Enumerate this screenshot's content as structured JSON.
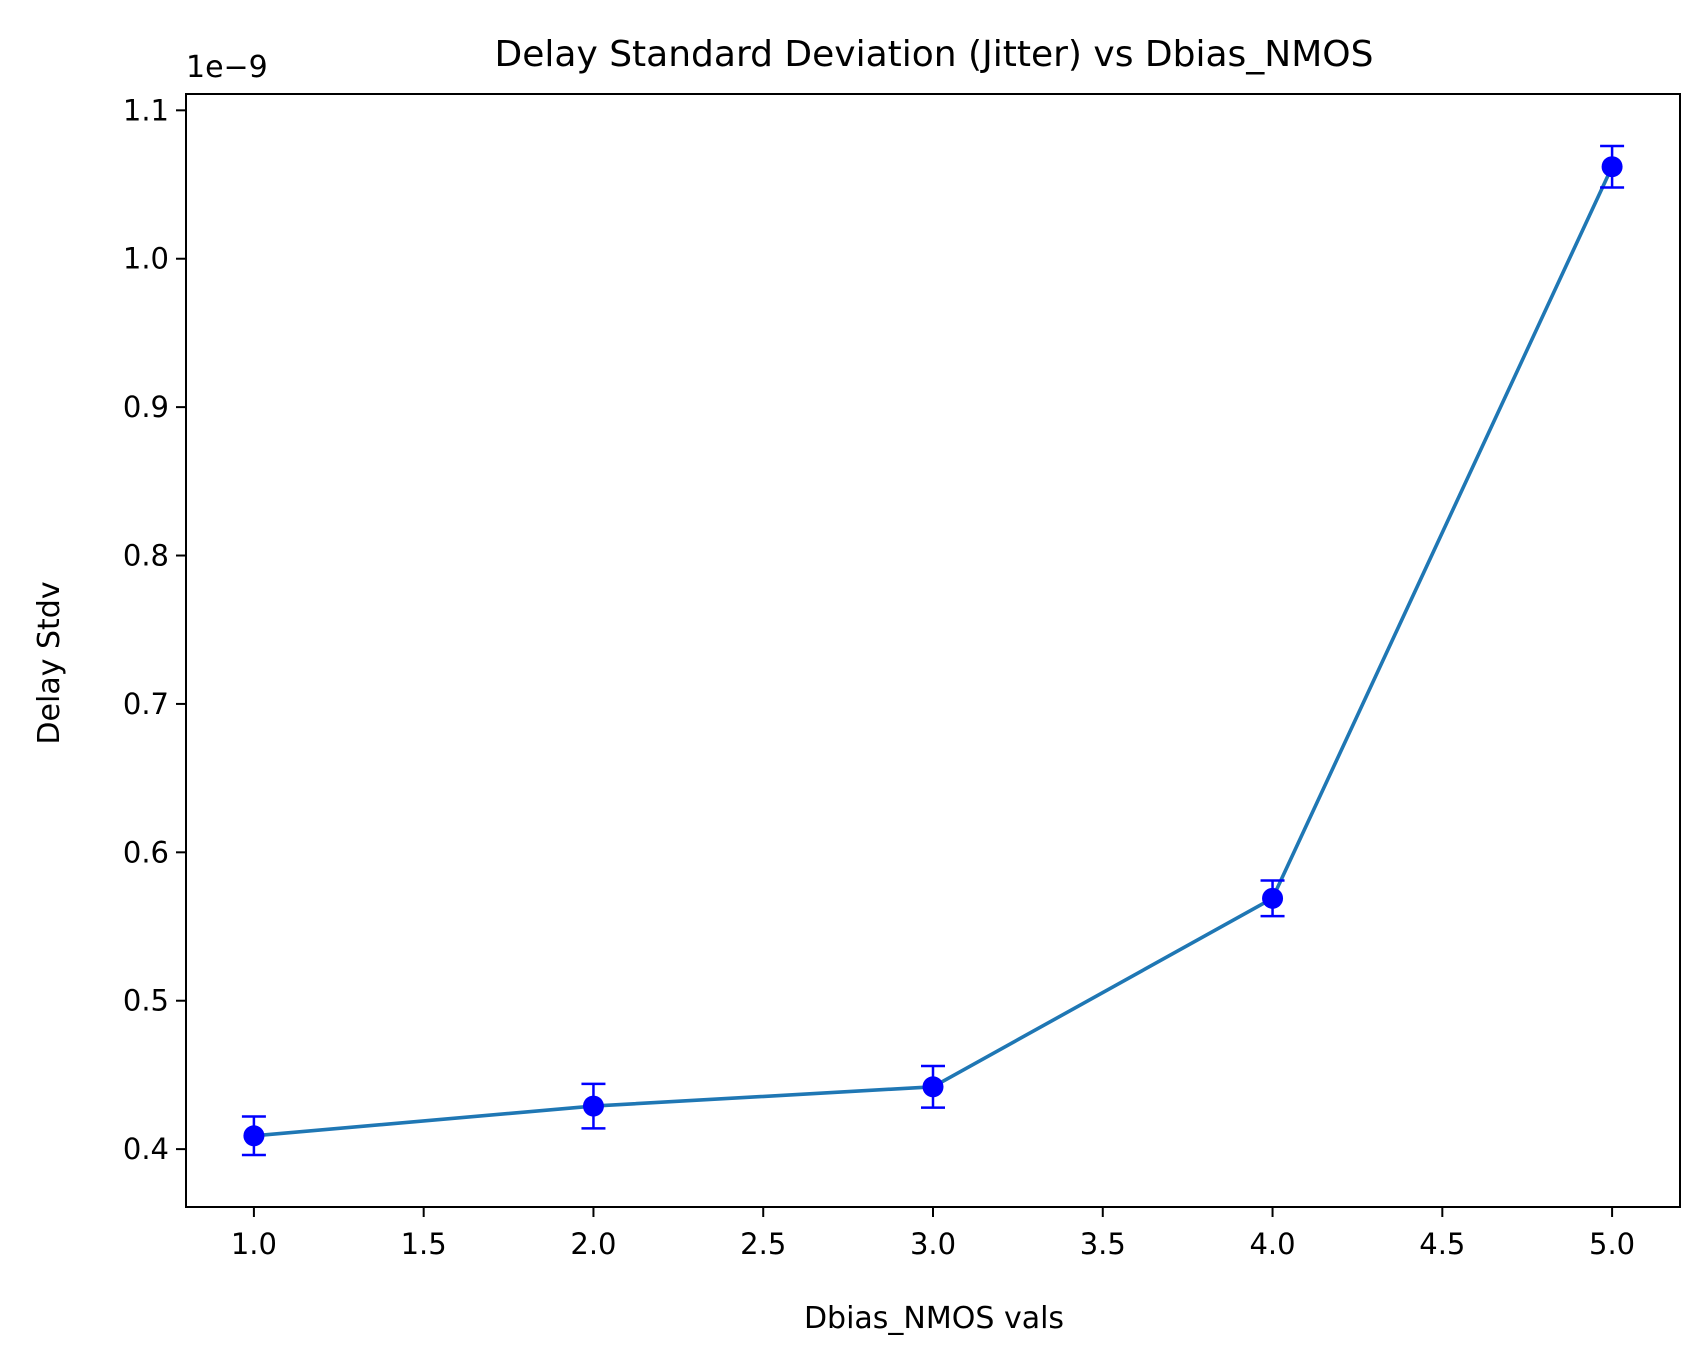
{
  "chart_data": {
    "type": "line",
    "title": "Delay Standard Deviation (Jitter) vs Dbias_NMOS",
    "xlabel": "Dbias_NMOS vals",
    "ylabel": "Delay Stdv",
    "y_offset_label": "1e−9",
    "xlim": [
      0.8,
      5.2
    ],
    "ylim": [
      0.361,
      1.111
    ],
    "x_ticks": [
      1.0,
      1.5,
      2.0,
      2.5,
      3.0,
      3.5,
      4.0,
      4.5,
      5.0
    ],
    "x_tick_labels": [
      "1.0",
      "1.5",
      "2.0",
      "2.5",
      "3.0",
      "3.5",
      "4.0",
      "4.5",
      "5.0"
    ],
    "y_ticks": [
      0.4,
      0.5,
      0.6,
      0.7,
      0.8,
      0.9,
      1.0,
      1.1
    ],
    "y_tick_labels": [
      "0.4",
      "0.5",
      "0.6",
      "0.7",
      "0.8",
      "0.9",
      "1.0",
      "1.1"
    ],
    "grid": false,
    "legend": "none",
    "series": [
      {
        "x": [
          1,
          2,
          3,
          4,
          5
        ],
        "y": [
          0.409,
          0.429,
          0.442,
          0.569,
          1.062
        ],
        "yerr": [
          0.013,
          0.015,
          0.014,
          0.012,
          0.014
        ],
        "line_color": "#1f77b4",
        "marker_color": "#0000ff"
      }
    ]
  }
}
